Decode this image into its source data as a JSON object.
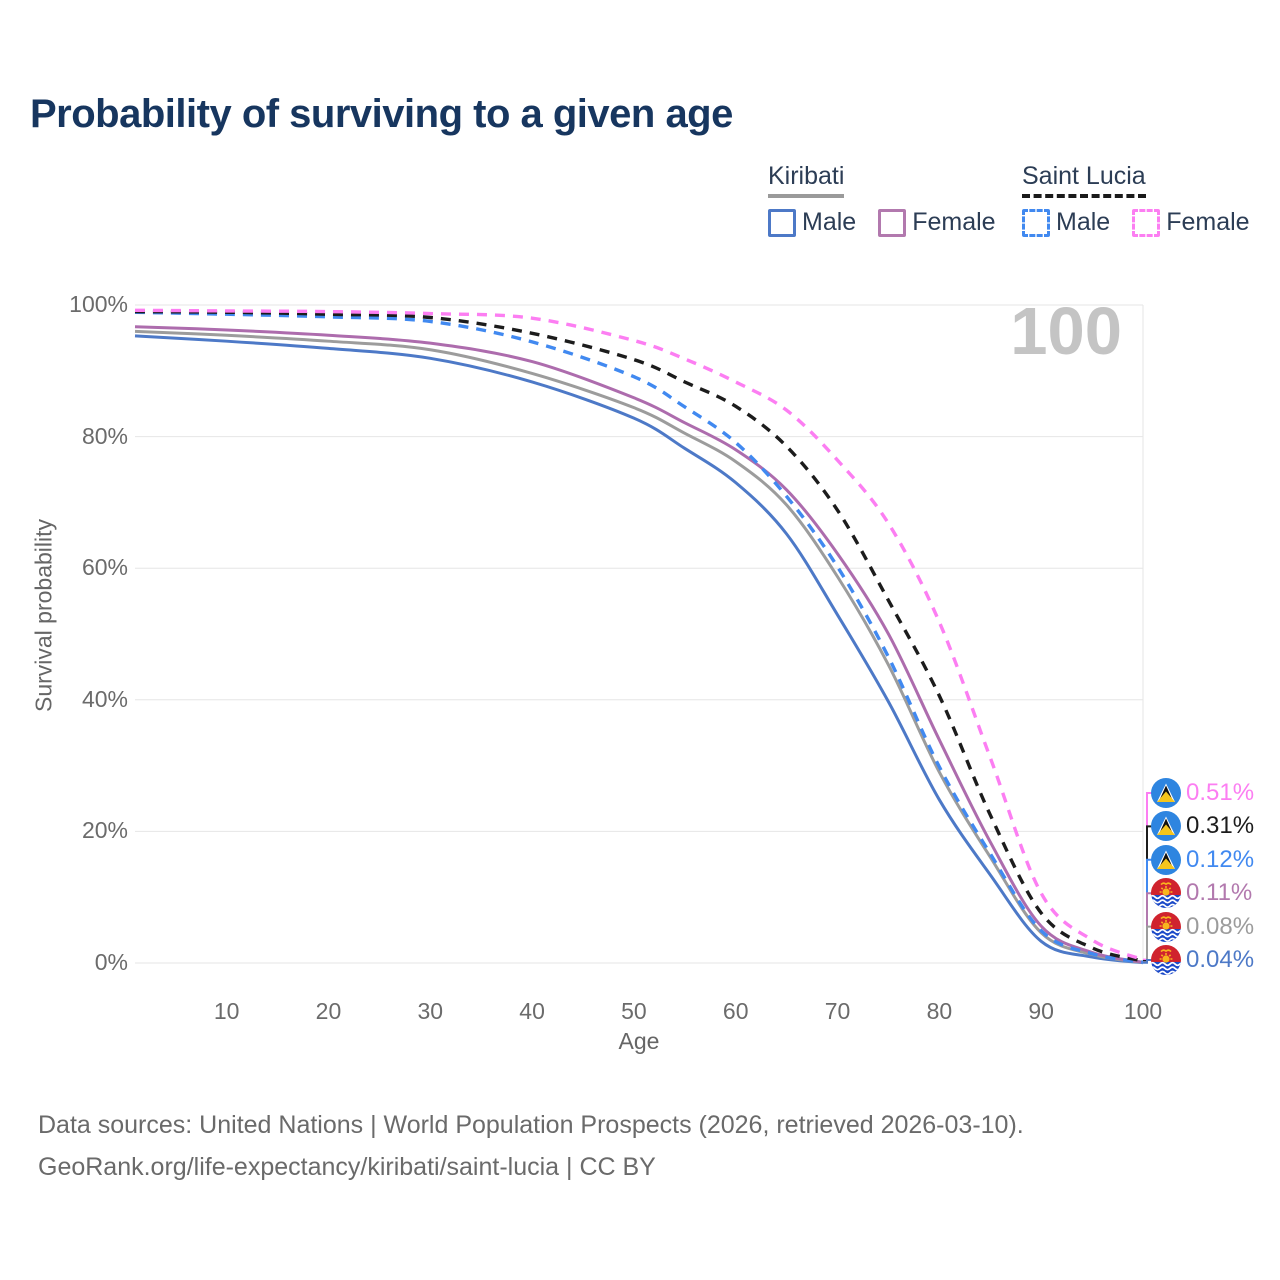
{
  "title": "Probability of surviving to a given age",
  "watermark": "100",
  "legend": {
    "groups": [
      {
        "country": "Kiribati",
        "underline": "solid",
        "underline_color": "#9a9a9a",
        "items": [
          {
            "label": "Male",
            "color": "#4d79c7",
            "dashed": false
          },
          {
            "label": "Female",
            "color": "#b279ae",
            "dashed": false
          }
        ]
      },
      {
        "country": "Saint Lucia",
        "underline": "dashed",
        "underline_color": "#1a1a1a",
        "items": [
          {
            "label": "Male",
            "color": "#4189f0",
            "dashed": true
          },
          {
            "label": "Female",
            "color": "#fc7ef2",
            "dashed": true
          }
        ]
      }
    ]
  },
  "y_axis": {
    "title": "Survival probability",
    "ticks": [
      "0%",
      "20%",
      "40%",
      "60%",
      "80%",
      "100%"
    ]
  },
  "x_axis": {
    "title": "Age",
    "ticks": [
      10,
      20,
      30,
      40,
      50,
      60,
      70,
      80,
      90,
      100
    ]
  },
  "end_labels": [
    {
      "value": "0.51%",
      "flag": "saint-lucia",
      "series": "Saint Lucia Female",
      "color": "#fc7ef2"
    },
    {
      "value": "0.31%",
      "flag": "saint-lucia",
      "series": "Saint Lucia Total",
      "color": "#1c1c1c"
    },
    {
      "value": "0.12%",
      "flag": "saint-lucia",
      "series": "Saint Lucia Male",
      "color": "#4189f0"
    },
    {
      "value": "0.11%",
      "flag": "kiribati",
      "series": "Kiribati Female",
      "color": "#b279ae"
    },
    {
      "value": "0.08%",
      "flag": "kiribati",
      "series": "Kiribati Total",
      "color": "#9c9c9c"
    },
    {
      "value": "0.04%",
      "flag": "kiribati",
      "series": "Kiribati Male",
      "color": "#4d79c7"
    }
  ],
  "source": {
    "line1": "Data sources: United Nations | World Population Prospects (2026, retrieved 2026-03-10).",
    "line2": "GeoRank.org/life-expectancy/kiribati/saint-lucia | CC BY"
  },
  "chart_data": {
    "type": "line",
    "title": "Probability of surviving to a given age",
    "xlabel": "Age",
    "ylabel": "Survival probability",
    "xlim": [
      1,
      100
    ],
    "ylim": [
      0,
      100
    ],
    "grid": "horizontal",
    "x": [
      1,
      10,
      20,
      30,
      40,
      50,
      55,
      60,
      65,
      70,
      75,
      80,
      85,
      90,
      95,
      100
    ],
    "series": [
      {
        "name": "Kiribati Male",
        "color": "#4d79c7",
        "dashed": false,
        "values": [
          95.3,
          94.5,
          93.4,
          91.9,
          88.3,
          82.8,
          78.2,
          73.0,
          65.2,
          52.9,
          39.7,
          24.8,
          13.4,
          3.3,
          0.9,
          0.04
        ]
      },
      {
        "name": "Kiribati Total",
        "color": "#9c9c9c",
        "dashed": false,
        "values": [
          96.0,
          95.4,
          94.5,
          93.2,
          89.6,
          84.4,
          80.5,
          76.2,
          69.6,
          58.7,
          45.3,
          29.0,
          16.1,
          4.6,
          1.3,
          0.08
        ]
      },
      {
        "name": "Kiribati Female",
        "color": "#ad6cad",
        "dashed": false,
        "values": [
          96.7,
          96.2,
          95.4,
          94.2,
          91.4,
          85.9,
          82.1,
          78.0,
          71.9,
          62.2,
          50.0,
          33.9,
          18.4,
          5.6,
          1.6,
          0.11
        ]
      },
      {
        "name": "Saint Lucia Male",
        "color": "#4189f0",
        "dashed": true,
        "values": [
          98.9,
          98.6,
          98.2,
          97.5,
          94.4,
          89.1,
          84.5,
          79.1,
          70.9,
          60.2,
          46.5,
          29.8,
          16.6,
          4.9,
          1.4,
          0.12
        ]
      },
      {
        "name": "Saint Lucia Total",
        "color": "#1c1c1c",
        "dashed": true,
        "values": [
          99.0,
          98.9,
          98.6,
          98.1,
          95.7,
          91.7,
          88.3,
          84.6,
          78.5,
          68.8,
          55.1,
          40.6,
          22.5,
          7.6,
          2.3,
          0.31
        ]
      },
      {
        "name": "Saint Lucia Female",
        "color": "#fc7ef2",
        "dashed": true,
        "values": [
          99.2,
          99.1,
          99.0,
          98.7,
          98.0,
          94.6,
          91.8,
          88.3,
          84.0,
          76.4,
          66.8,
          51.8,
          31.2,
          10.6,
          3.5,
          0.51
        ]
      }
    ]
  }
}
